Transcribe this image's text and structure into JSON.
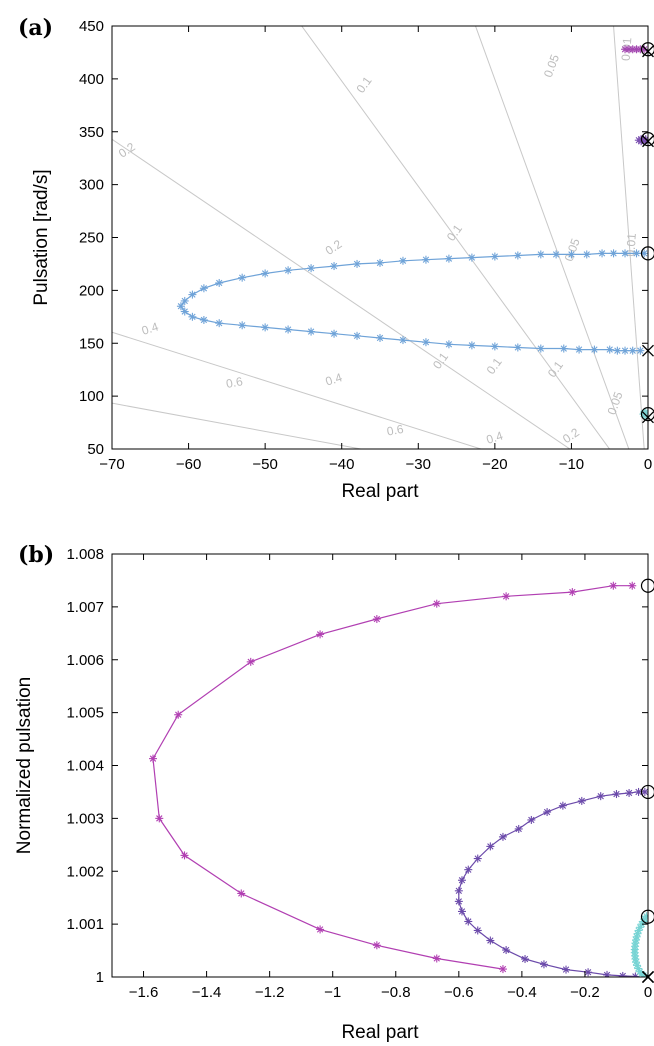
{
  "chart_data": [
    {
      "panel": "(a)",
      "type": "scatter",
      "xlabel": "Real part",
      "ylabel": "Pulsation [rad/s]",
      "xlim": [
        -70,
        0
      ],
      "ylim": [
        50,
        450
      ],
      "xticks": [
        -70,
        -60,
        -50,
        -40,
        -30,
        -20,
        -10,
        0
      ],
      "yticks": [
        50,
        100,
        150,
        200,
        250,
        300,
        350,
        400,
        450
      ],
      "xtick_labels": [
        "−70",
        "−60",
        "−50",
        "−40",
        "−30",
        "−20",
        "−10",
        "0"
      ],
      "ytick_labels": [
        "50",
        "100",
        "150",
        "200",
        "250",
        "300",
        "350",
        "400",
        "450"
      ],
      "damping_contours": [
        {
          "zeta": 0.01,
          "label": "0.01",
          "label_positions": [
            [
              -2.7,
              428
            ],
            [
              -2.1,
              243
            ]
          ]
        },
        {
          "zeta": 0.05,
          "label": "0.05",
          "label_positions": [
            [
              -12.5,
              412
            ],
            [
              -9.8,
              238
            ],
            [
              -4.2,
              93
            ]
          ]
        },
        {
          "zeta": 0.1,
          "label": "0.1",
          "label_positions": [
            [
              -37,
              394
            ],
            [
              -25.2,
              254
            ],
            [
              -12,
              125
            ],
            [
              -20,
              128
            ],
            [
              -27,
              133
            ]
          ]
        },
        {
          "zeta": 0.2,
          "label": "0.2",
          "label_positions": [
            [
              -68,
              332
            ],
            [
              -41,
              240
            ],
            [
              -10,
              62
            ]
          ]
        },
        {
          "zeta": 0.4,
          "label": "0.4",
          "label_positions": [
            [
              -65,
              163
            ],
            [
              -41,
              115
            ],
            [
              -20,
              60
            ]
          ]
        },
        {
          "zeta": 0.6,
          "label": "0.6",
          "label_positions": [
            [
              -54,
              112
            ],
            [
              -33,
              67
            ]
          ]
        }
      ],
      "series": [
        {
          "color": "#6fa3d8",
          "points": [
            [
              -0.5,
              235
            ],
            [
              -1.5,
              235
            ],
            [
              -3,
              235
            ],
            [
              -4.5,
              235
            ],
            [
              -6,
              235
            ],
            [
              -8,
              234
            ],
            [
              -10,
              234
            ],
            [
              -12,
              234
            ],
            [
              -14,
              234
            ],
            [
              -17,
              233
            ],
            [
              -20,
              232
            ],
            [
              -23,
              231
            ],
            [
              -26,
              230
            ],
            [
              -29,
              229
            ],
            [
              -32,
              228
            ],
            [
              -35,
              226
            ],
            [
              -38,
              225
            ],
            [
              -41,
              223
            ],
            [
              -44,
              221
            ],
            [
              -47,
              219
            ],
            [
              -50,
              216
            ],
            [
              -53,
              212
            ],
            [
              -56,
              207
            ],
            [
              -58,
              202
            ],
            [
              -59.5,
              196
            ],
            [
              -60.5,
              190
            ],
            [
              -61,
              185
            ],
            [
              -60.5,
              180
            ],
            [
              -59.5,
              175
            ],
            [
              -58,
              172
            ],
            [
              -56,
              169
            ],
            [
              -53,
              167
            ],
            [
              -50,
              165
            ],
            [
              -47,
              163
            ],
            [
              -44,
              161
            ],
            [
              -41,
              159
            ],
            [
              -38,
              157
            ],
            [
              -35,
              155
            ],
            [
              -32,
              153
            ],
            [
              -29,
              151
            ],
            [
              -26,
              149
            ],
            [
              -23,
              148
            ],
            [
              -20,
              147
            ],
            [
              -17,
              146
            ],
            [
              -14,
              145
            ],
            [
              -11,
              145
            ],
            [
              -9,
              144
            ],
            [
              -7,
              144
            ],
            [
              -5,
              144
            ],
            [
              -4,
              143
            ],
            [
              -3,
              143
            ],
            [
              -2,
              143
            ],
            [
              -1,
              143
            ]
          ],
          "start": {
            "marker": "circle",
            "x": 0,
            "y": 235
          },
          "end": {
            "marker": "cross",
            "x": 0,
            "y": 143
          }
        },
        {
          "color": "#a347b0",
          "points": [
            [
              -0.5,
              428
            ],
            [
              -1,
              428
            ],
            [
              -1.5,
              428
            ],
            [
              -2,
              428
            ],
            [
              -2.5,
              428
            ],
            [
              -3,
              428
            ]
          ],
          "start": {
            "marker": "circle",
            "x": 0,
            "y": 428
          },
          "end": {
            "marker": "cross",
            "x": 0,
            "y": 426
          }
        },
        {
          "color": "#7a4fb0",
          "points": [
            [
              -0.3,
              343
            ],
            [
              -0.6,
              343
            ],
            [
              -0.9,
              343
            ],
            [
              -1.2,
              342
            ],
            [
              -0.9,
              341
            ],
            [
              -0.5,
              341
            ]
          ],
          "start": {
            "marker": "circle",
            "x": 0,
            "y": 343
          },
          "end": {
            "marker": "cross",
            "x": 0,
            "y": 341
          }
        },
        {
          "color": "#7fd3d3",
          "points": [
            [
              -0.2,
              81
            ],
            [
              -0.4,
              82
            ],
            [
              -0.6,
              83
            ],
            [
              -0.5,
              84
            ],
            [
              -0.3,
              85
            ]
          ],
          "start": {
            "marker": "circle",
            "x": 0,
            "y": 83
          },
          "end": {
            "marker": "cross",
            "x": 0,
            "y": 80
          }
        }
      ]
    },
    {
      "panel": "(b)",
      "type": "line",
      "xlabel": "Real part",
      "ylabel": "Normalized pulsation",
      "xlim": [
        -1.7,
        0
      ],
      "ylim": [
        1.0,
        1.008
      ],
      "xticks": [
        -1.6,
        -1.4,
        -1.2,
        -1.0,
        -0.8,
        -0.6,
        -0.4,
        -0.2,
        0
      ],
      "yticks": [
        1.0,
        1.001,
        1.002,
        1.003,
        1.004,
        1.005,
        1.006,
        1.007,
        1.008
      ],
      "xtick_labels": [
        "−1.6",
        "−1.4",
        "−1.2",
        "−1",
        "−0.8",
        "−0.6",
        "−0.4",
        "−0.2",
        "0"
      ],
      "ytick_labels": [
        "1",
        "1.001",
        "1.002",
        "1.003",
        "1.004",
        "1.005",
        "1.006",
        "1.007",
        "1.008"
      ],
      "series": [
        {
          "color": "#b13fb2",
          "points": [
            [
              -0.05,
              1.0074
            ],
            [
              -0.11,
              1.0074
            ],
            [
              -0.24,
              1.00728
            ],
            [
              -0.45,
              1.0072
            ],
            [
              -0.67,
              1.00706
            ],
            [
              -0.86,
              1.00677
            ],
            [
              -1.04,
              1.00648
            ],
            [
              -1.26,
              1.00596
            ],
            [
              -1.49,
              1.00496
            ],
            [
              -1.57,
              1.00413
            ],
            [
              -1.55,
              1.003
            ],
            [
              -1.47,
              1.0023
            ],
            [
              -1.29,
              1.00158
            ],
            [
              -1.04,
              1.0009
            ],
            [
              -0.86,
              1.0006
            ],
            [
              -0.67,
              1.00035
            ],
            [
              -0.46,
              1.00015
            ]
          ],
          "start": {
            "marker": "circle",
            "x": 0,
            "y": 1.0074
          },
          "end": {
            "marker": "cross",
            "x": 0,
            "y": 1.0
          }
        },
        {
          "color": "#6b4aaa",
          "points": [
            [
              -0.01,
              1.0035
            ],
            [
              -0.03,
              1.0035
            ],
            [
              -0.06,
              1.00348
            ],
            [
              -0.1,
              1.00346
            ],
            [
              -0.15,
              1.00342
            ],
            [
              -0.21,
              1.00333
            ],
            [
              -0.27,
              1.00324
            ],
            [
              -0.32,
              1.00312
            ],
            [
              -0.37,
              1.00297
            ],
            [
              -0.41,
              1.0028
            ],
            [
              -0.46,
              1.00265
            ],
            [
              -0.5,
              1.00247
            ],
            [
              -0.54,
              1.00224
            ],
            [
              -0.57,
              1.00203
            ],
            [
              -0.59,
              1.00183
            ],
            [
              -0.6,
              1.00163
            ],
            [
              -0.6,
              1.00143
            ],
            [
              -0.59,
              1.00124
            ],
            [
              -0.57,
              1.00105
            ],
            [
              -0.54,
              1.00088
            ],
            [
              -0.5,
              1.00069
            ],
            [
              -0.45,
              1.00051
            ],
            [
              -0.39,
              1.00034
            ],
            [
              -0.33,
              1.00024
            ],
            [
              -0.26,
              1.00014
            ],
            [
              -0.19,
              1.00009
            ],
            [
              -0.13,
              1.00004
            ],
            [
              -0.08,
              1.00002
            ],
            [
              -0.04,
              1.00001
            ]
          ],
          "start": {
            "marker": "circle",
            "x": 0,
            "y": 1.0035
          },
          "end": {
            "marker": "cross",
            "x": 0,
            "y": 1.0
          }
        },
        {
          "color": "#78d4d4",
          "points": [
            [
              -0.005,
              1.00115
            ],
            [
              -0.01,
              1.0011
            ],
            [
              -0.015,
              1.00105
            ],
            [
              -0.02,
              1.001
            ],
            [
              -0.025,
              1.00094
            ],
            [
              -0.03,
              1.00088
            ],
            [
              -0.033,
              1.00082
            ],
            [
              -0.036,
              1.00076
            ],
            [
              -0.038,
              1.0007
            ],
            [
              -0.04,
              1.00064
            ],
            [
              -0.041,
              1.00058
            ],
            [
              -0.042,
              1.00052
            ],
            [
              -0.042,
              1.00046
            ],
            [
              -0.041,
              1.0004
            ],
            [
              -0.04,
              1.00034
            ],
            [
              -0.038,
              1.00028
            ],
            [
              -0.035,
              1.00022
            ],
            [
              -0.031,
              1.00016
            ],
            [
              -0.026,
              1.0001
            ],
            [
              -0.02,
              1.00006
            ],
            [
              -0.014,
              1.00003
            ],
            [
              -0.008,
              1.00001
            ]
          ],
          "start": {
            "marker": "circle",
            "x": 0,
            "y": 1.00114
          },
          "end": {
            "marker": "cross",
            "x": 0,
            "y": 1.0
          }
        }
      ]
    }
  ]
}
